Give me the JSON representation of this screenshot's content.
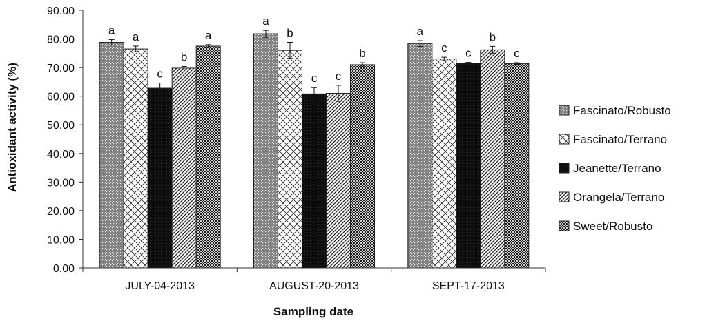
{
  "chart_data": {
    "type": "bar",
    "title": "",
    "xlabel": "Sampling date",
    "ylabel": "Antioxidant activity (%)",
    "ylim": [
      0,
      90
    ],
    "y_ticks": [
      "0.00",
      "10.00",
      "20.00",
      "30.00",
      "40.00",
      "50.00",
      "60.00",
      "70.00",
      "80.00",
      "90.00"
    ],
    "categories": [
      "JULY-04-2013",
      "AUGUST-20-2013",
      "SEPT-17-2013"
    ],
    "legend_position": "right",
    "grid": false,
    "series": [
      {
        "name": "Fascinato/Robusto",
        "pattern": "dots-dark",
        "values": [
          78.8,
          81.8,
          78.4
        ],
        "errors": [
          1.0,
          1.2,
          1.0
        ],
        "letters": [
          "a",
          "a",
          "a"
        ]
      },
      {
        "name": "Fascinato/Terrano",
        "pattern": "diamond-light",
        "values": [
          76.5,
          76.0,
          73.0
        ],
        "errors": [
          1.0,
          2.8,
          0.6
        ],
        "letters": [
          "a",
          "b",
          "c"
        ]
      },
      {
        "name": "Jeanette/Terrano",
        "pattern": "solid-black",
        "values": [
          62.8,
          60.8,
          71.5
        ],
        "errors": [
          1.8,
          2.2,
          0.3
        ],
        "letters": [
          "c",
          "c",
          "c"
        ]
      },
      {
        "name": "Orangela/Terrano",
        "pattern": "diagonal",
        "values": [
          69.8,
          61.0,
          76.2
        ],
        "errors": [
          0.6,
          2.8,
          1.2
        ],
        "letters": [
          "b",
          "c",
          "b"
        ]
      },
      {
        "name": "Sweet/Robusto",
        "pattern": "checker",
        "values": [
          77.5,
          71.0,
          71.4
        ],
        "errors": [
          0.5,
          0.7,
          0.3
        ],
        "letters": [
          "a",
          "b",
          "c"
        ]
      }
    ]
  }
}
